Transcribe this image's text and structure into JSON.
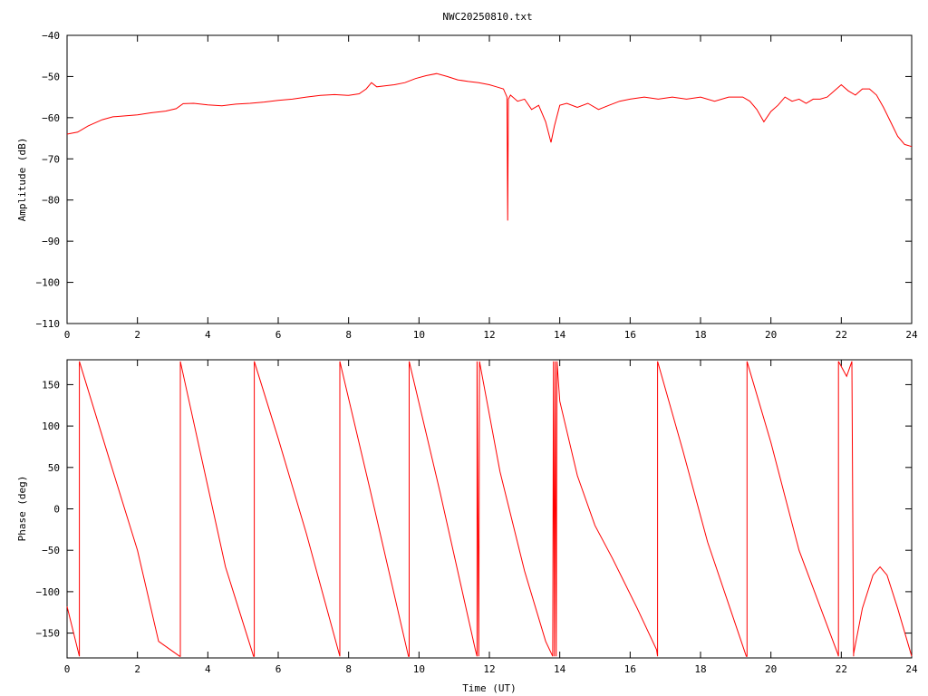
{
  "chart_data": [
    {
      "type": "line",
      "id": "amplitude",
      "title": "NWC20250810.txt",
      "xlabel": "",
      "ylabel": "Amplitude (dB)",
      "xlim": [
        0,
        24
      ],
      "ylim": [
        -110,
        -40
      ],
      "xticks": [
        0,
        2,
        4,
        6,
        8,
        10,
        12,
        14,
        16,
        18,
        20,
        22,
        24
      ],
      "yticks": [
        -40,
        -50,
        -60,
        -70,
        -80,
        -90,
        -100,
        -110
      ],
      "ytick_labels": [
        "−40",
        "−50",
        "−60",
        "−70",
        "−80",
        "−90",
        "−100",
        "−110"
      ],
      "grid": false,
      "color": "#ff0000",
      "series": [
        {
          "x": [
            0,
            0.3,
            0.6,
            1.0,
            1.3,
            1.6,
            2.0,
            2.4,
            2.8,
            3.1,
            3.3,
            3.6,
            4.0,
            4.4,
            4.8,
            5.2,
            5.6,
            6.0,
            6.4,
            6.8,
            7.2,
            7.6,
            8.0,
            8.3,
            8.5,
            8.65,
            8.8,
            9.0,
            9.3,
            9.6,
            9.9,
            10.2,
            10.5,
            10.8,
            11.1,
            11.4,
            11.7,
            12.0,
            12.2,
            12.4,
            12.5,
            12.52,
            12.54,
            12.6,
            12.8,
            13.0,
            13.2,
            13.4,
            13.6,
            13.75,
            13.85,
            14.0,
            14.2,
            14.5,
            14.8,
            15.1,
            15.4,
            15.7,
            16.0,
            16.4,
            16.8,
            17.2,
            17.6,
            18.0,
            18.4,
            18.8,
            19.2,
            19.4,
            19.6,
            19.8,
            20.0,
            20.2,
            20.4,
            20.6,
            20.8,
            21.0,
            21.2,
            21.4,
            21.6,
            21.8,
            22.0,
            22.2,
            22.4,
            22.6,
            22.8,
            23.0,
            23.2,
            23.4,
            23.6,
            23.8,
            24.0
          ],
          "y": [
            -64,
            -63.5,
            -62,
            -60.5,
            -59.8,
            -59.6,
            -59.3,
            -58.8,
            -58.4,
            -57.8,
            -56.6,
            -56.5,
            -56.9,
            -57.1,
            -56.7,
            -56.5,
            -56.2,
            -55.8,
            -55.5,
            -55.0,
            -54.6,
            -54.4,
            -54.6,
            -54.2,
            -53.0,
            -51.5,
            -52.5,
            -52.3,
            -52.0,
            -51.5,
            -50.5,
            -49.8,
            -49.3,
            -50.0,
            -50.8,
            -51.2,
            -51.5,
            -52.0,
            -52.5,
            -53.0,
            -55.0,
            -85.0,
            -55.5,
            -54.5,
            -56.0,
            -55.5,
            -58.0,
            -57.0,
            -61.0,
            -66.0,
            -62.0,
            -57.0,
            -56.5,
            -57.5,
            -56.5,
            -58.0,
            -57.0,
            -56.0,
            -55.5,
            -55.0,
            -55.5,
            -55.0,
            -55.5,
            -55.0,
            -56.0,
            -55.0,
            -55.0,
            -56.0,
            -58.0,
            -61.0,
            -58.5,
            -57.0,
            -55.0,
            -56.0,
            -55.5,
            -56.5,
            -55.5,
            -55.5,
            -55.0,
            -53.5,
            -52.0,
            -53.5,
            -54.5,
            -53.0,
            -53.0,
            -54.5,
            -57.5,
            -61.0,
            -64.5,
            -66.5,
            -67.0
          ]
        }
      ]
    },
    {
      "type": "line",
      "id": "phase",
      "title": "",
      "xlabel": "Time (UT)",
      "ylabel": "Phase (deg)",
      "xlim": [
        0,
        24
      ],
      "ylim": [
        -180,
        180
      ],
      "xticks": [
        0,
        2,
        4,
        6,
        8,
        10,
        12,
        14,
        16,
        18,
        20,
        22,
        24
      ],
      "yticks": [
        150,
        100,
        50,
        0,
        -50,
        -100,
        -150
      ],
      "ytick_labels": [
        "150",
        "100",
        "50",
        "0",
        "−50",
        "−100",
        "−150"
      ],
      "grid": false,
      "color": "#ff0000",
      "series": [
        {
          "x": [
            0,
            0.35,
            0.35,
            1.2,
            2.0,
            2.6,
            3.2,
            3.22,
            3.22,
            4.5,
            5.3,
            5.32,
            5.32,
            6.0,
            6.8,
            7.7,
            7.75,
            7.75,
            8.6,
            9.7,
            9.72,
            9.72,
            10.6,
            11.6,
            11.65,
            11.65,
            11.7,
            11.72,
            11.72,
            12.3,
            13.0,
            13.6,
            13.8,
            13.82,
            13.85,
            13.87,
            13.9,
            13.92,
            14.0,
            14.5,
            15.0,
            15.5,
            16.2,
            16.75,
            16.78,
            16.78,
            17.5,
            18.2,
            19.3,
            19.32,
            19.32,
            20.0,
            20.8,
            21.9,
            21.92,
            21.92,
            22.15,
            22.3,
            22.35,
            22.35,
            22.6,
            22.9,
            23.1,
            23.3,
            23.6,
            24.0
          ],
          "y": [
            -118,
            -178,
            178,
            60,
            -50,
            -160,
            -178,
            -178,
            178,
            -70,
            -178,
            -178,
            178,
            85,
            -30,
            -170,
            -178,
            178,
            25,
            -178,
            -178,
            178,
            20,
            -170,
            -178,
            178,
            -178,
            178,
            178,
            45,
            -75,
            -160,
            -178,
            178,
            -178,
            178,
            -178,
            178,
            130,
            40,
            -20,
            -60,
            -120,
            -170,
            -178,
            178,
            70,
            -40,
            -178,
            -178,
            178,
            80,
            -50,
            -175,
            -178,
            178,
            160,
            178,
            -178,
            -175,
            -120,
            -80,
            -70,
            -80,
            -120,
            -178
          ]
        }
      ]
    }
  ]
}
